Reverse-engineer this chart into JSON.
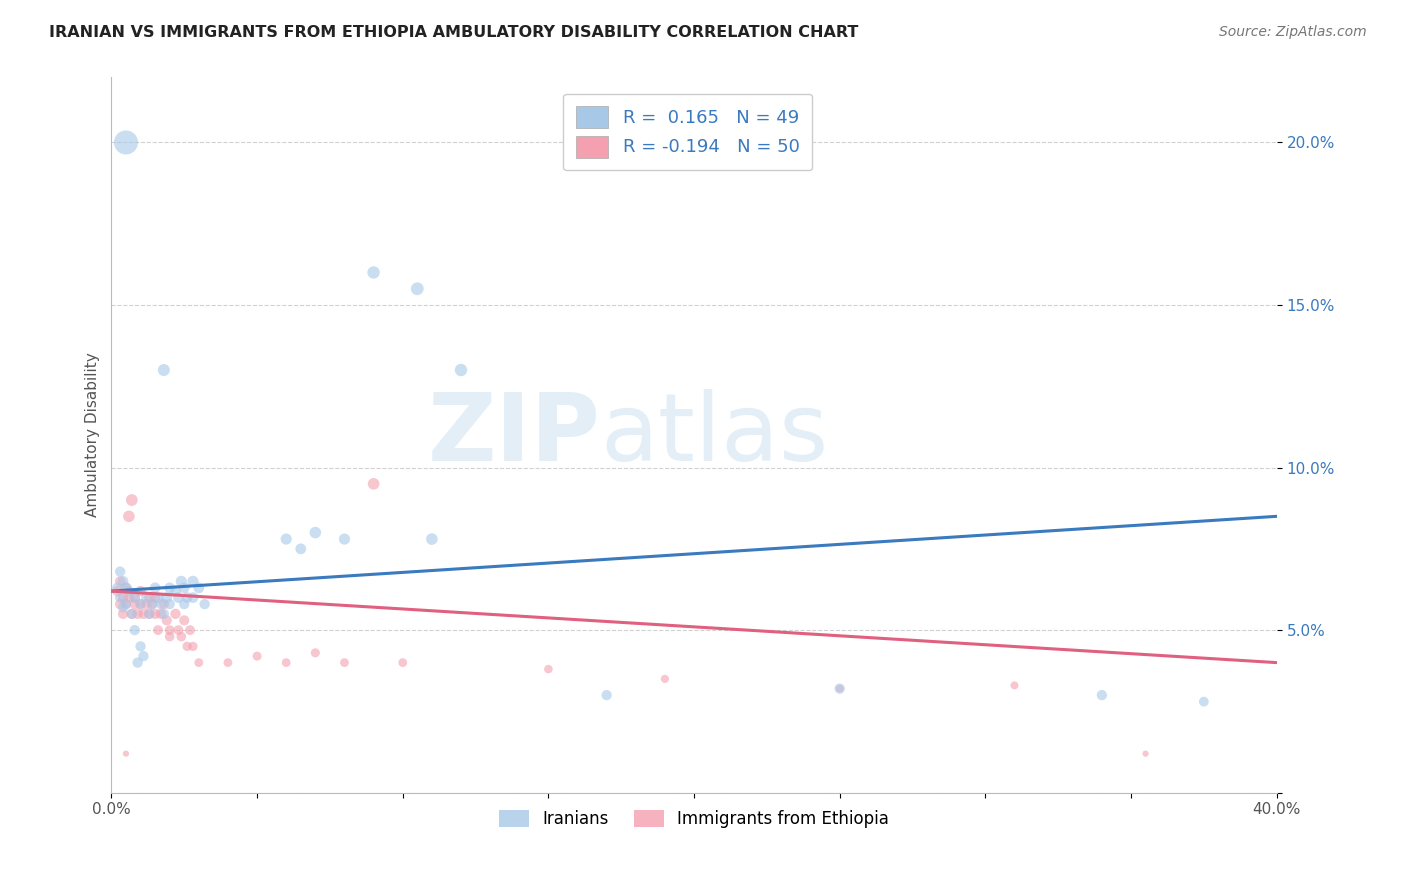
{
  "title": "IRANIAN VS IMMIGRANTS FROM ETHIOPIA AMBULATORY DISABILITY CORRELATION CHART",
  "source": "Source: ZipAtlas.com",
  "ylabel": "Ambulatory Disability",
  "xlim": [
    0.0,
    0.4
  ],
  "ylim": [
    0.0,
    0.22
  ],
  "xticks": [
    0.0,
    0.05,
    0.1,
    0.15,
    0.2,
    0.25,
    0.3,
    0.35,
    0.4
  ],
  "yticks": [
    0.0,
    0.05,
    0.1,
    0.15,
    0.2
  ],
  "xtick_labels": [
    "0.0%",
    "",
    "",
    "",
    "",
    "",
    "",
    "",
    "40.0%"
  ],
  "ytick_labels": [
    "",
    "5.0%",
    "10.0%",
    "15.0%",
    "20.0%"
  ],
  "blue_R": "0.165",
  "blue_N": "49",
  "pink_R": "-0.194",
  "pink_N": "50",
  "blue_color": "#a8c8e8",
  "pink_color": "#f4a0b0",
  "blue_line_color": "#3a7abf",
  "pink_line_color": "#e06080",
  "background_color": "#ffffff",
  "grid_color": "#cccccc",
  "iranians_label": "Iranians",
  "ethiopia_label": "Immigrants from Ethiopia",
  "blue_scatter": [
    [
      0.002,
      0.063
    ],
    [
      0.003,
      0.06
    ],
    [
      0.003,
      0.068
    ],
    [
      0.004,
      0.057
    ],
    [
      0.004,
      0.065
    ],
    [
      0.005,
      0.058
    ],
    [
      0.005,
      0.063
    ],
    [
      0.005,
      0.2
    ],
    [
      0.006,
      0.062
    ],
    [
      0.007,
      0.055
    ],
    [
      0.008,
      0.06
    ],
    [
      0.008,
      0.05
    ],
    [
      0.009,
      0.04
    ],
    [
      0.01,
      0.058
    ],
    [
      0.01,
      0.045
    ],
    [
      0.011,
      0.042
    ],
    [
      0.012,
      0.06
    ],
    [
      0.013,
      0.055
    ],
    [
      0.014,
      0.058
    ],
    [
      0.015,
      0.063
    ],
    [
      0.016,
      0.06
    ],
    [
      0.017,
      0.058
    ],
    [
      0.018,
      0.055
    ],
    [
      0.019,
      0.06
    ],
    [
      0.02,
      0.063
    ],
    [
      0.02,
      0.058
    ],
    [
      0.022,
      0.062
    ],
    [
      0.023,
      0.06
    ],
    [
      0.024,
      0.065
    ],
    [
      0.025,
      0.063
    ],
    [
      0.025,
      0.058
    ],
    [
      0.026,
      0.06
    ],
    [
      0.028,
      0.065
    ],
    [
      0.028,
      0.06
    ],
    [
      0.03,
      0.063
    ],
    [
      0.032,
      0.058
    ],
    [
      0.06,
      0.078
    ],
    [
      0.065,
      0.075
    ],
    [
      0.07,
      0.08
    ],
    [
      0.08,
      0.078
    ],
    [
      0.09,
      0.16
    ],
    [
      0.105,
      0.155
    ],
    [
      0.11,
      0.078
    ],
    [
      0.12,
      0.13
    ],
    [
      0.018,
      0.13
    ],
    [
      0.25,
      0.032
    ],
    [
      0.34,
      0.03
    ],
    [
      0.375,
      0.028
    ],
    [
      0.17,
      0.03
    ]
  ],
  "pink_scatter": [
    [
      0.002,
      0.062
    ],
    [
      0.003,
      0.058
    ],
    [
      0.003,
      0.065
    ],
    [
      0.004,
      0.06
    ],
    [
      0.004,
      0.055
    ],
    [
      0.005,
      0.063
    ],
    [
      0.005,
      0.058
    ],
    [
      0.006,
      0.06
    ],
    [
      0.006,
      0.085
    ],
    [
      0.007,
      0.09
    ],
    [
      0.007,
      0.055
    ],
    [
      0.008,
      0.058
    ],
    [
      0.008,
      0.06
    ],
    [
      0.009,
      0.055
    ],
    [
      0.01,
      0.062
    ],
    [
      0.01,
      0.058
    ],
    [
      0.011,
      0.055
    ],
    [
      0.012,
      0.058
    ],
    [
      0.013,
      0.06
    ],
    [
      0.013,
      0.055
    ],
    [
      0.014,
      0.058
    ],
    [
      0.015,
      0.06
    ],
    [
      0.015,
      0.055
    ],
    [
      0.016,
      0.05
    ],
    [
      0.017,
      0.055
    ],
    [
      0.018,
      0.058
    ],
    [
      0.019,
      0.053
    ],
    [
      0.02,
      0.05
    ],
    [
      0.02,
      0.048
    ],
    [
      0.022,
      0.055
    ],
    [
      0.023,
      0.05
    ],
    [
      0.024,
      0.048
    ],
    [
      0.025,
      0.053
    ],
    [
      0.026,
      0.045
    ],
    [
      0.027,
      0.05
    ],
    [
      0.028,
      0.045
    ],
    [
      0.09,
      0.095
    ],
    [
      0.05,
      0.042
    ],
    [
      0.06,
      0.04
    ],
    [
      0.07,
      0.043
    ],
    [
      0.08,
      0.04
    ],
    [
      0.1,
      0.04
    ],
    [
      0.15,
      0.038
    ],
    [
      0.19,
      0.035
    ],
    [
      0.25,
      0.032
    ],
    [
      0.31,
      0.033
    ],
    [
      0.355,
      0.012
    ],
    [
      0.005,
      0.012
    ],
    [
      0.03,
      0.04
    ],
    [
      0.04,
      0.04
    ]
  ],
  "blue_sizes": [
    55,
    55,
    55,
    55,
    60,
    55,
    60,
    300,
    55,
    55,
    55,
    55,
    55,
    55,
    55,
    55,
    55,
    55,
    55,
    60,
    60,
    55,
    55,
    60,
    60,
    55,
    60,
    60,
    65,
    60,
    55,
    60,
    65,
    60,
    60,
    55,
    65,
    60,
    70,
    65,
    80,
    85,
    70,
    80,
    75,
    55,
    55,
    50,
    55
  ],
  "pink_sizes": [
    55,
    55,
    55,
    55,
    55,
    60,
    55,
    55,
    70,
    72,
    55,
    55,
    55,
    55,
    55,
    55,
    55,
    55,
    55,
    55,
    55,
    55,
    55,
    50,
    55,
    55,
    53,
    50,
    48,
    55,
    50,
    48,
    53,
    45,
    50,
    45,
    70,
    42,
    40,
    43,
    40,
    40,
    38,
    35,
    32,
    33,
    20,
    20,
    40,
    40
  ]
}
